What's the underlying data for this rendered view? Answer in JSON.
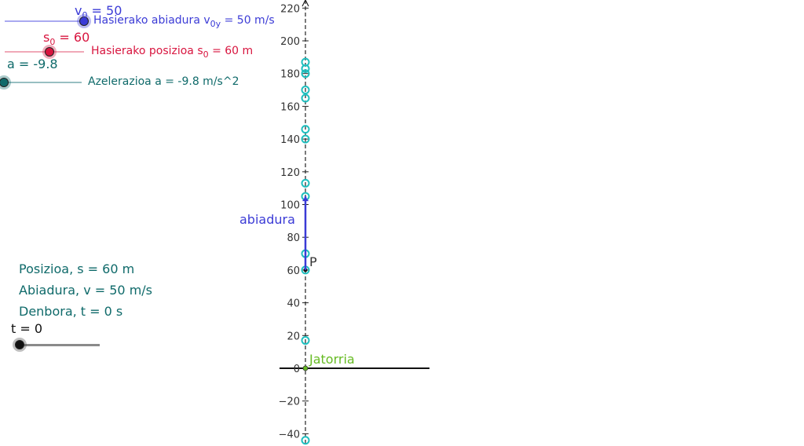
{
  "sliders": {
    "v0": {
      "name": "v₀ = 50",
      "name_main": "v",
      "name_sub": "0",
      "name_rest": " = 50",
      "label_prefix": "Hasierako abiadura v",
      "label_sub": "0y",
      "label_suffix": " = 50 m/s",
      "value": 50,
      "color": "#3b3bd6"
    },
    "s0": {
      "name_main": "s",
      "name_sub": "0",
      "name_rest": " = 60",
      "label_prefix": "Hasierako posizioa s",
      "label_sub": "0",
      "label_suffix": " = 60 m",
      "value": 60,
      "color": "#d8153f"
    },
    "a": {
      "name": "a = -9.8",
      "label": "Azelerazioa a = -9.8 m/s^2",
      "value": -9.8,
      "color": "#0f6a6a"
    },
    "t": {
      "name": "t = 0",
      "value": 0,
      "color": "#111111"
    }
  },
  "info": {
    "position": "Posizioa, s = 60 m",
    "velocity": "Abiadura, v = 50 m/s",
    "time": "Denbora, t = 0 s"
  },
  "graph": {
    "y_ticks": [
      "220",
      "200",
      "180",
      "160",
      "140",
      "120",
      "100",
      "80",
      "60",
      "40",
      "20",
      "0",
      "−20",
      "−40"
    ],
    "y_values": [
      220,
      200,
      180,
      160,
      140,
      120,
      100,
      80,
      60,
      40,
      20,
      0,
      -20,
      -40
    ],
    "velocity_label": "abiadura",
    "point_label": "P",
    "origin_label": "Jatorria",
    "trace_points": [
      -44,
      17,
      60,
      70,
      105,
      113,
      140,
      146,
      165,
      170,
      180,
      183,
      187
    ],
    "velocity_vector": {
      "from": 60,
      "to": 105
    },
    "colors": {
      "trace": "#1fbfbf",
      "vector": "#3b3bd6",
      "origin": "#66bb22",
      "axis": "#222222"
    }
  }
}
